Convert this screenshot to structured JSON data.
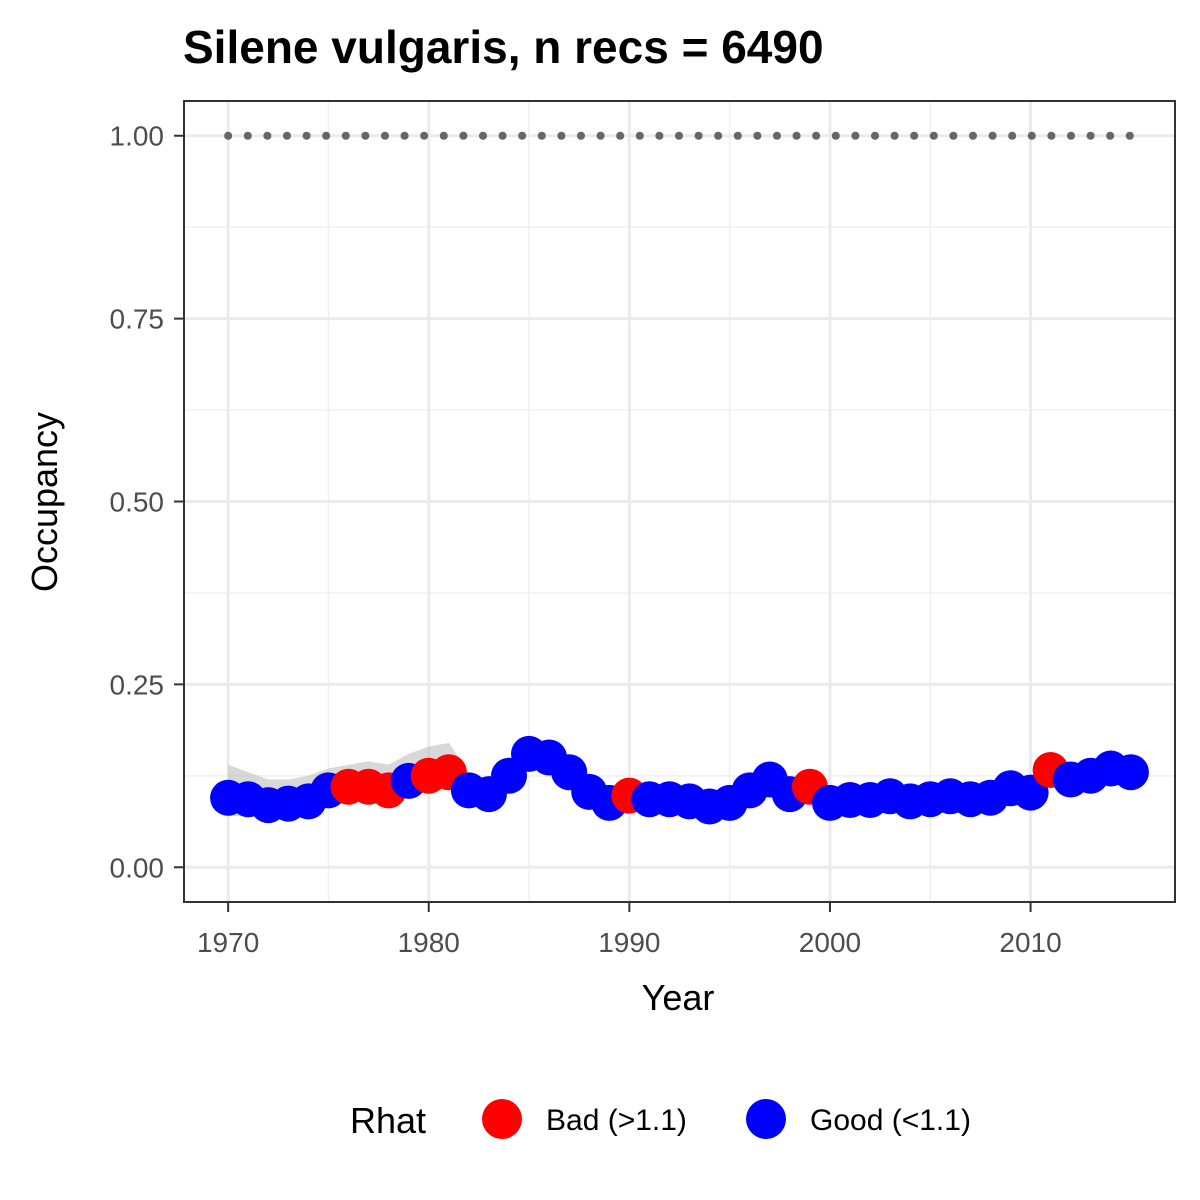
{
  "chart_data": {
    "type": "scatter",
    "title": "Silene vulgaris, n recs = 6490",
    "xlabel": "Year",
    "ylabel": "Occupancy",
    "xlim": [
      1967.8,
      2017.2
    ],
    "ylim": [
      -0.0475,
      1.0475
    ],
    "x_ticks": [
      1970,
      1980,
      1990,
      2000,
      2010
    ],
    "x_tick_labels": [
      "1970",
      "1980",
      "1990",
      "2000",
      "2010"
    ],
    "y_ticks": [
      0,
      0.25,
      0.5,
      0.75,
      1.0
    ],
    "y_tick_labels": [
      "0.00",
      "0.25",
      "0.50",
      "0.75",
      "1.00"
    ],
    "grid": true,
    "legend": {
      "title": "Rhat",
      "placement": "bottom",
      "entries": [
        {
          "label": "Bad (>1.1)",
          "color": "#ff0000"
        },
        {
          "label": "Good (<1.1)",
          "color": "#0000ff"
        }
      ]
    },
    "colors": {
      "bad": "#ff0000",
      "good": "#0000ff",
      "ci_band": "#bebebe",
      "reference": "#666666"
    },
    "reference_line": {
      "y": 1.0,
      "style": "dotted",
      "x_start": 1970,
      "x_end": 2015
    },
    "series": [
      {
        "name": "Occupancy",
        "points": [
          {
            "x": 1970,
            "y": 0.095,
            "lo": 0.07,
            "hi": 0.14,
            "rhat": "Good (<1.1)"
          },
          {
            "x": 1971,
            "y": 0.093,
            "lo": 0.07,
            "hi": 0.13,
            "rhat": "Good (<1.1)"
          },
          {
            "x": 1972,
            "y": 0.085,
            "lo": 0.065,
            "hi": 0.12,
            "rhat": "Good (<1.1)"
          },
          {
            "x": 1973,
            "y": 0.087,
            "lo": 0.068,
            "hi": 0.12,
            "rhat": "Good (<1.1)"
          },
          {
            "x": 1974,
            "y": 0.09,
            "lo": 0.07,
            "hi": 0.125,
            "rhat": "Good (<1.1)"
          },
          {
            "x": 1975,
            "y": 0.105,
            "lo": 0.085,
            "hi": 0.135,
            "rhat": "Good (<1.1)"
          },
          {
            "x": 1976,
            "y": 0.11,
            "lo": 0.09,
            "hi": 0.14,
            "rhat": "Bad (>1.1)"
          },
          {
            "x": 1977,
            "y": 0.11,
            "lo": 0.09,
            "hi": 0.145,
            "rhat": "Bad (>1.1)"
          },
          {
            "x": 1978,
            "y": 0.105,
            "lo": 0.09,
            "hi": 0.14,
            "rhat": "Bad (>1.1)"
          },
          {
            "x": 1979,
            "y": 0.118,
            "lo": 0.1,
            "hi": 0.155,
            "rhat": "Good (<1.1)"
          },
          {
            "x": 1980,
            "y": 0.125,
            "lo": 0.105,
            "hi": 0.165,
            "rhat": "Bad (>1.1)"
          },
          {
            "x": 1981,
            "y": 0.13,
            "lo": 0.11,
            "hi": 0.17,
            "rhat": "Bad (>1.1)"
          },
          {
            "x": 1982,
            "y": 0.105,
            "lo": 0.09,
            "hi": 0.13,
            "rhat": "Good (<1.1)"
          },
          {
            "x": 1983,
            "y": 0.1,
            "lo": 0.085,
            "hi": 0.12,
            "rhat": "Good (<1.1)"
          },
          {
            "x": 1984,
            "y": 0.125,
            "lo": 0.11,
            "hi": 0.145,
            "rhat": "Good (<1.1)"
          },
          {
            "x": 1985,
            "y": 0.155,
            "lo": 0.14,
            "hi": 0.18,
            "rhat": "Good (<1.1)"
          },
          {
            "x": 1986,
            "y": 0.15,
            "lo": 0.135,
            "hi": 0.17,
            "rhat": "Good (<1.1)"
          },
          {
            "x": 1987,
            "y": 0.13,
            "lo": 0.115,
            "hi": 0.15,
            "rhat": "Good (<1.1)"
          },
          {
            "x": 1988,
            "y": 0.103,
            "lo": 0.09,
            "hi": 0.12,
            "rhat": "Good (<1.1)"
          },
          {
            "x": 1989,
            "y": 0.088,
            "lo": 0.075,
            "hi": 0.105,
            "rhat": "Good (<1.1)"
          },
          {
            "x": 1990,
            "y": 0.098,
            "lo": 0.085,
            "hi": 0.115,
            "rhat": "Bad (>1.1)"
          },
          {
            "x": 1991,
            "y": 0.093,
            "lo": 0.08,
            "hi": 0.108,
            "rhat": "Good (<1.1)"
          },
          {
            "x": 1992,
            "y": 0.093,
            "lo": 0.08,
            "hi": 0.108,
            "rhat": "Good (<1.1)"
          },
          {
            "x": 1993,
            "y": 0.09,
            "lo": 0.078,
            "hi": 0.105,
            "rhat": "Good (<1.1)"
          },
          {
            "x": 1994,
            "y": 0.083,
            "lo": 0.072,
            "hi": 0.097,
            "rhat": "Good (<1.1)"
          },
          {
            "x": 1995,
            "y": 0.088,
            "lo": 0.076,
            "hi": 0.1,
            "rhat": "Good (<1.1)"
          },
          {
            "x": 1996,
            "y": 0.105,
            "lo": 0.092,
            "hi": 0.12,
            "rhat": "Good (<1.1)"
          },
          {
            "x": 1997,
            "y": 0.12,
            "lo": 0.106,
            "hi": 0.135,
            "rhat": "Good (<1.1)"
          },
          {
            "x": 1998,
            "y": 0.1,
            "lo": 0.088,
            "hi": 0.115,
            "rhat": "Good (<1.1)"
          },
          {
            "x": 1999,
            "y": 0.11,
            "lo": 0.097,
            "hi": 0.125,
            "rhat": "Bad (>1.1)"
          },
          {
            "x": 2000,
            "y": 0.088,
            "lo": 0.077,
            "hi": 0.1,
            "rhat": "Good (<1.1)"
          },
          {
            "x": 2001,
            "y": 0.092,
            "lo": 0.08,
            "hi": 0.105,
            "rhat": "Good (<1.1)"
          },
          {
            "x": 2002,
            "y": 0.092,
            "lo": 0.08,
            "hi": 0.105,
            "rhat": "Good (<1.1)"
          },
          {
            "x": 2003,
            "y": 0.097,
            "lo": 0.085,
            "hi": 0.11,
            "rhat": "Good (<1.1)"
          },
          {
            "x": 2004,
            "y": 0.09,
            "lo": 0.079,
            "hi": 0.103,
            "rhat": "Good (<1.1)"
          },
          {
            "x": 2005,
            "y": 0.093,
            "lo": 0.082,
            "hi": 0.106,
            "rhat": "Good (<1.1)"
          },
          {
            "x": 2006,
            "y": 0.097,
            "lo": 0.085,
            "hi": 0.11,
            "rhat": "Good (<1.1)"
          },
          {
            "x": 2007,
            "y": 0.093,
            "lo": 0.082,
            "hi": 0.106,
            "rhat": "Good (<1.1)"
          },
          {
            "x": 2008,
            "y": 0.095,
            "lo": 0.083,
            "hi": 0.108,
            "rhat": "Good (<1.1)"
          },
          {
            "x": 2009,
            "y": 0.108,
            "lo": 0.095,
            "hi": 0.122,
            "rhat": "Good (<1.1)"
          },
          {
            "x": 2010,
            "y": 0.102,
            "lo": 0.09,
            "hi": 0.116,
            "rhat": "Good (<1.1)"
          },
          {
            "x": 2011,
            "y": 0.133,
            "lo": 0.118,
            "hi": 0.15,
            "rhat": "Bad (>1.1)"
          },
          {
            "x": 2012,
            "y": 0.12,
            "lo": 0.106,
            "hi": 0.135,
            "rhat": "Good (<1.1)"
          },
          {
            "x": 2013,
            "y": 0.125,
            "lo": 0.111,
            "hi": 0.14,
            "rhat": "Good (<1.1)"
          },
          {
            "x": 2014,
            "y": 0.135,
            "lo": 0.12,
            "hi": 0.15,
            "rhat": "Good (<1.1)"
          },
          {
            "x": 2015,
            "y": 0.13,
            "lo": 0.115,
            "hi": 0.145,
            "rhat": "Good (<1.1)"
          }
        ]
      }
    ]
  }
}
